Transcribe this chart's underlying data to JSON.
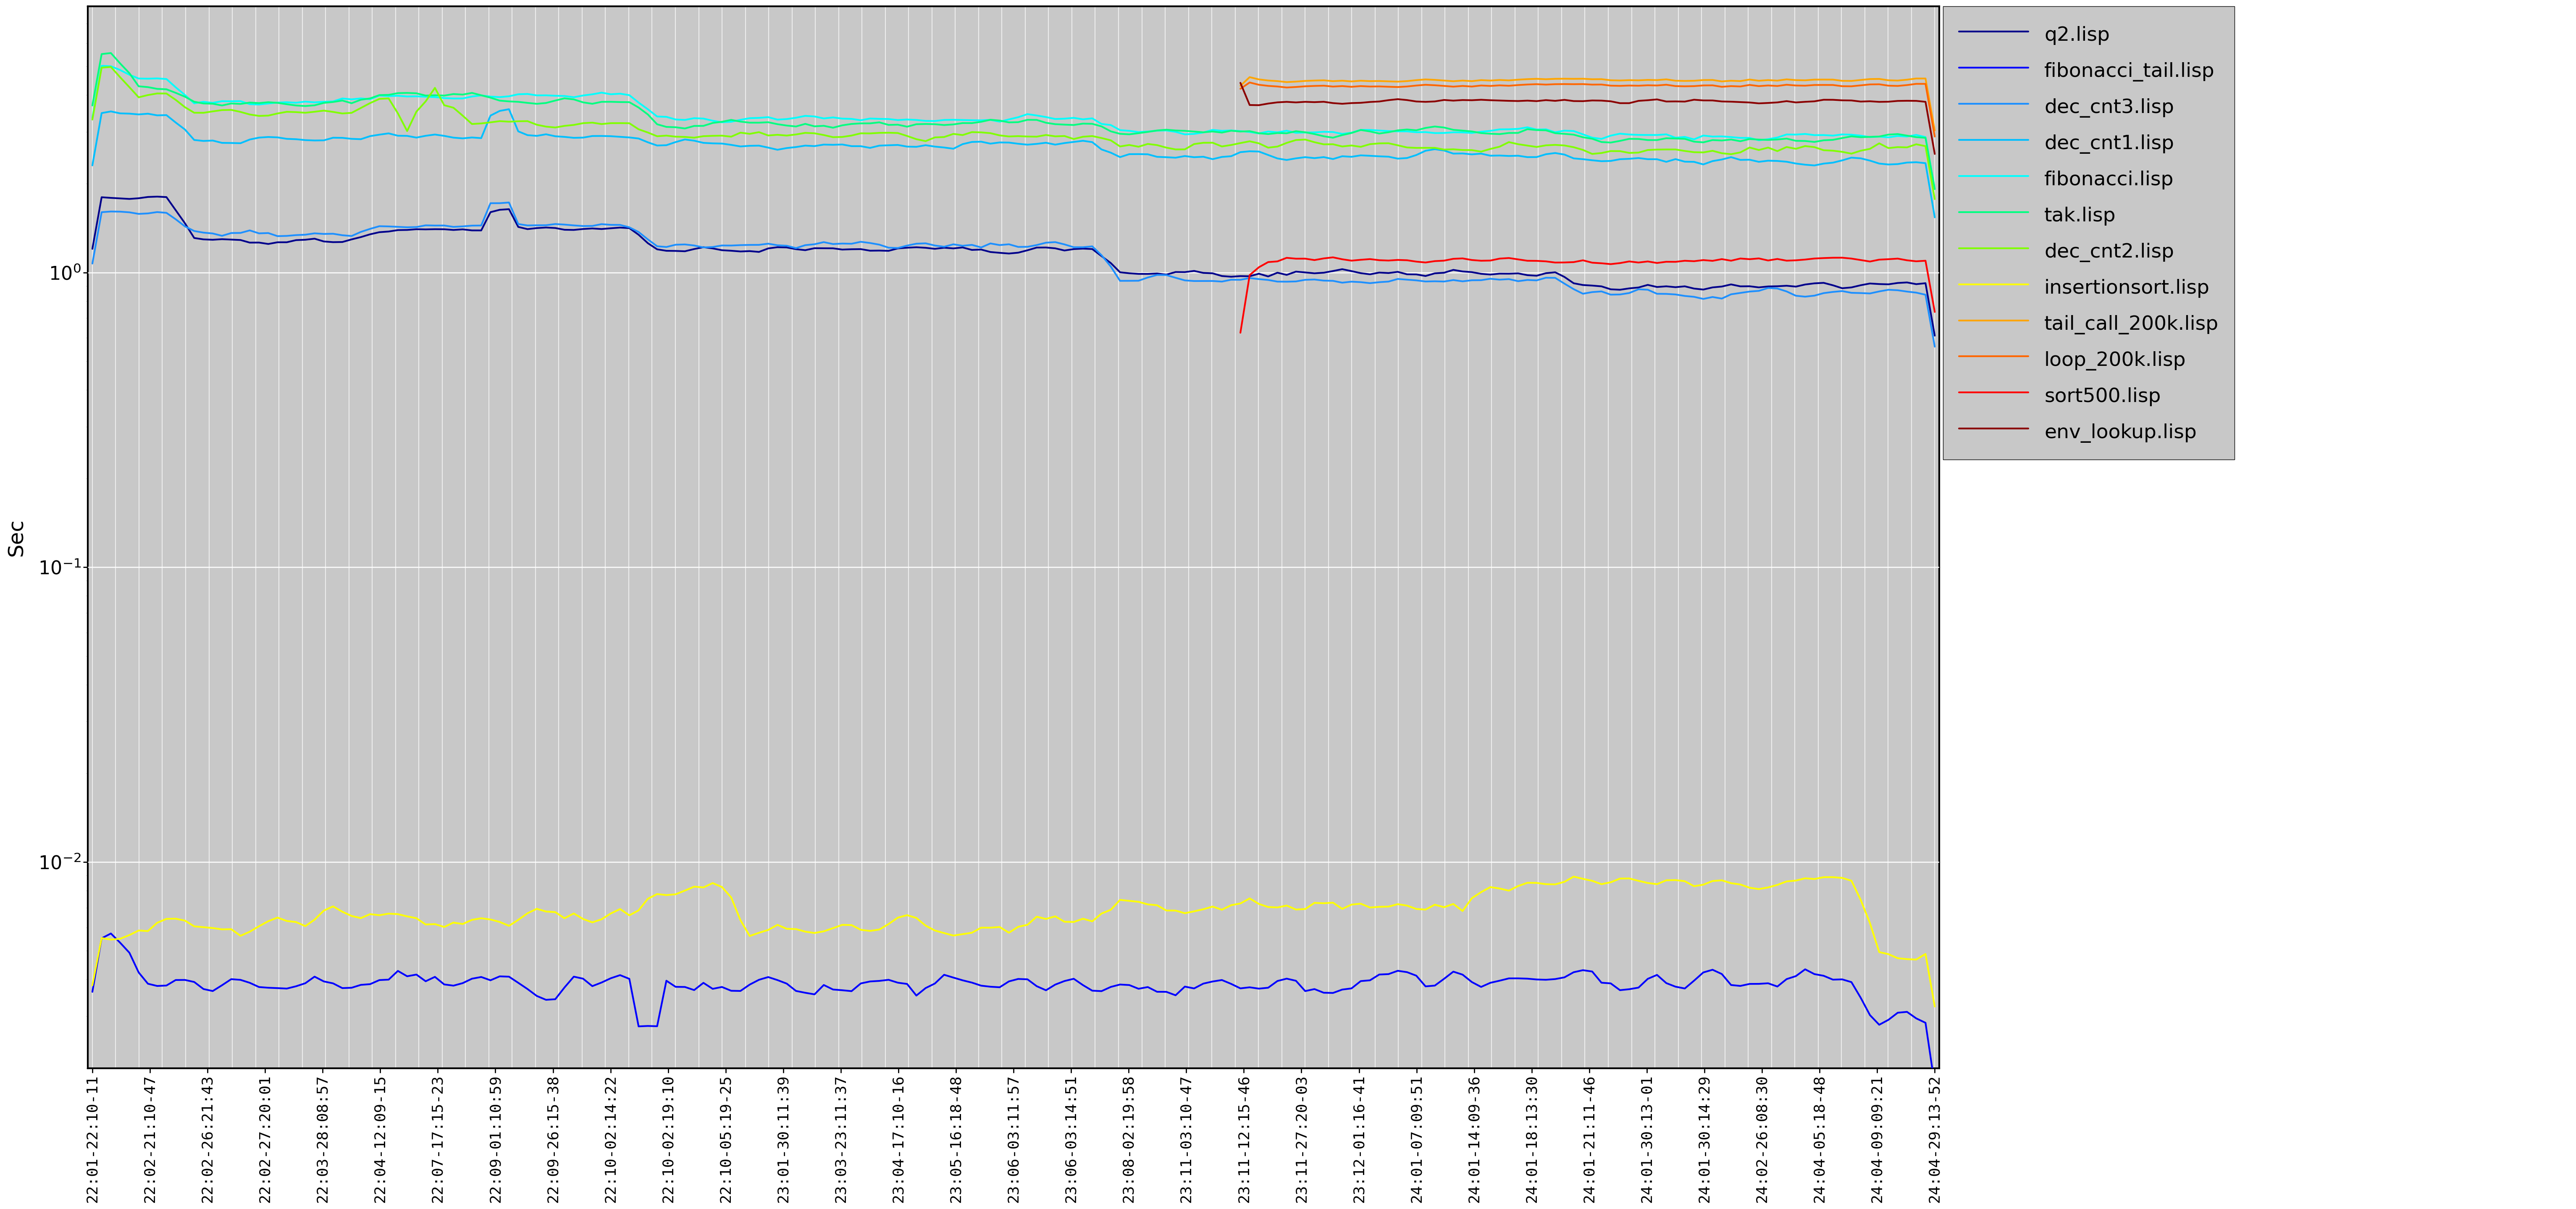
{
  "ylabel": "Sec",
  "background_color": "#c8c8c8",
  "series": [
    {
      "label": "q2.lisp",
      "color": "#00008B",
      "linewidth": 3.0
    },
    {
      "label": "fibonacci_tail.lisp",
      "color": "#0000FF",
      "linewidth": 3.0
    },
    {
      "label": "dec_cnt3.lisp",
      "color": "#1E90FF",
      "linewidth": 3.0
    },
    {
      "label": "dec_cnt1.lisp",
      "color": "#00BFFF",
      "linewidth": 3.0
    },
    {
      "label": "fibonacci.lisp",
      "color": "#00FFFF",
      "linewidth": 3.0
    },
    {
      "label": "tak.lisp",
      "color": "#00FF80",
      "linewidth": 3.0
    },
    {
      "label": "dec_cnt2.lisp",
      "color": "#80FF00",
      "linewidth": 3.0
    },
    {
      "label": "insertionsort.lisp",
      "color": "#FFFF00",
      "linewidth": 3.0
    },
    {
      "label": "tail_call_200k.lisp",
      "color": "#FFA500",
      "linewidth": 3.0
    },
    {
      "label": "loop_200k.lisp",
      "color": "#FF6600",
      "linewidth": 3.0
    },
    {
      "label": "sort500.lisp",
      "color": "#FF0000",
      "linewidth": 3.0
    },
    {
      "label": "env_lookup.lisp",
      "color": "#8B0000",
      "linewidth": 3.0
    }
  ],
  "x_labels": [
    "22:01-22:10-11",
    "22:02-21:10-47",
    "22:02-26:21:43",
    "22:02-27:20:01",
    "22:03-28:08:57",
    "22:04-12:09-15",
    "22:07-17:15-23",
    "22:09-01:10:59",
    "22:09-26:15-38",
    "22:10-02:14:22",
    "22:10-02:19:10",
    "22:10-05:19-25",
    "23:01-30:11:39",
    "23:03-23:11:37",
    "23:04-17:10-16",
    "23:05-16:18-48",
    "23:06-03:11:57",
    "23:06-03:14:51",
    "23:08-02:19:58",
    "23:11-03:10-47",
    "23:11-12:15-46",
    "23:11-27:20-03",
    "23:12-01:16-41",
    "24:01-07:09:51",
    "24:01-14:09-36",
    "24:01-18:13:30",
    "24:01-21:11-46",
    "24:01-30:13-01",
    "24:01-30:14:29",
    "24:02-26:08:30",
    "24:04-05:18-48",
    "24:04-09:09:21",
    "24:04-29:13-52"
  ]
}
